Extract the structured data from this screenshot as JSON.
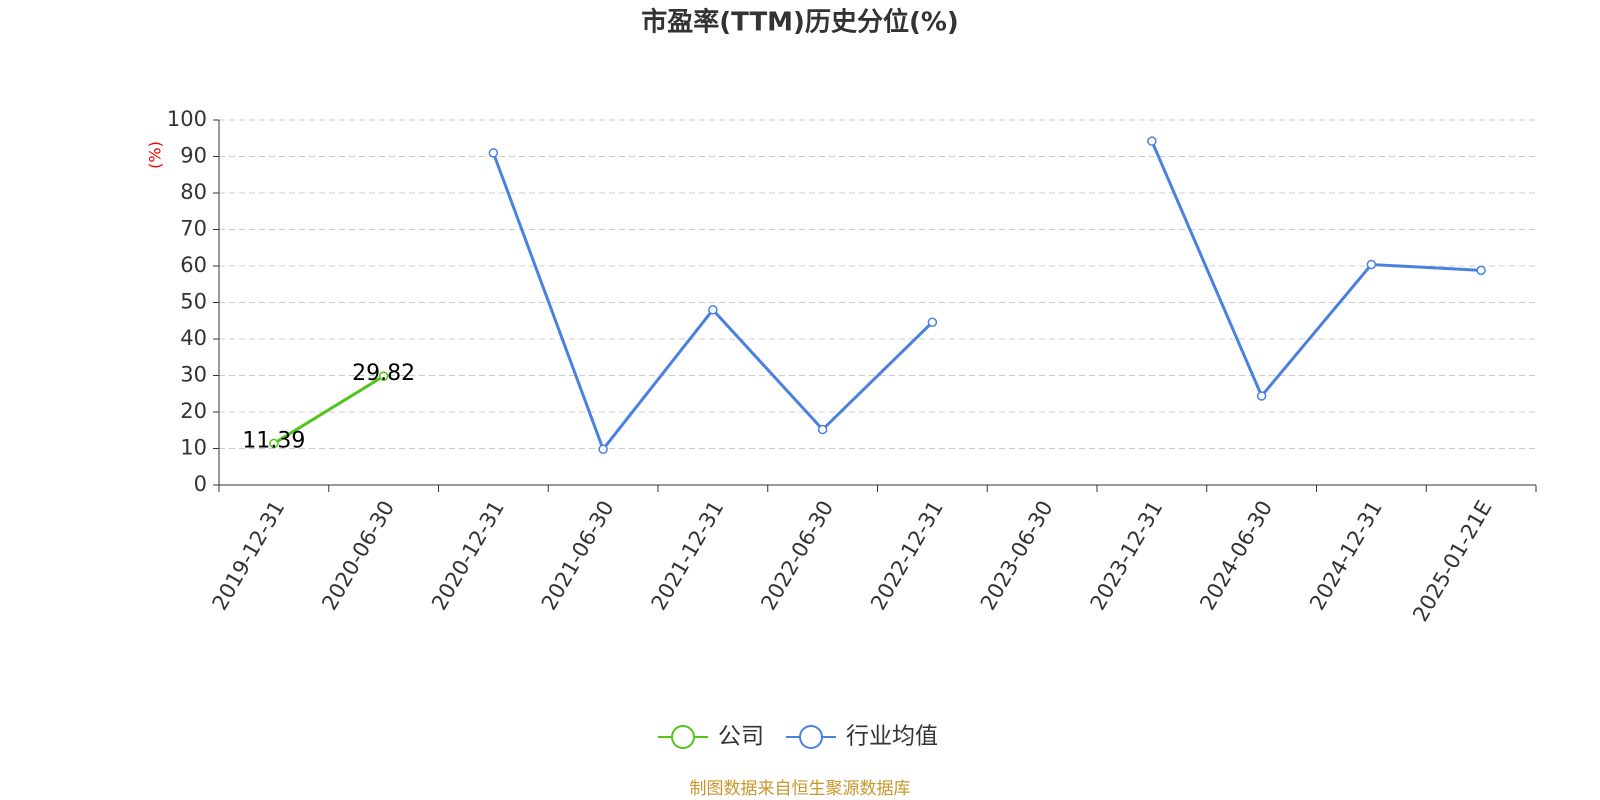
{
  "chart_data": {
    "type": "line",
    "title": "市盈率(TTM)历史分位(%)",
    "y_label": "(%)",
    "categories": [
      "2019-12-31",
      "2020-06-30",
      "2020-12-31",
      "2021-06-30",
      "2021-12-31",
      "2022-06-30",
      "2022-12-31",
      "2023-06-30",
      "2023-12-31",
      "2024-06-30",
      "2024-12-31",
      "2025-01-21E"
    ],
    "series": [
      {
        "name": "公司",
        "color": "#52c41a",
        "show_labels": true,
        "values": [
          11.39,
          29.82,
          null,
          null,
          null,
          null,
          null,
          null,
          null,
          null,
          null,
          null
        ]
      },
      {
        "name": "行业均值",
        "color": "#4a80e0",
        "show_labels": false,
        "values": [
          null,
          null,
          91,
          9.8,
          48,
          15.2,
          44.6,
          null,
          94.2,
          24.4,
          60.4,
          58.8
        ]
      }
    ],
    "ylim": [
      0,
      100
    ],
    "yticks": [
      0,
      10,
      20,
      30,
      40,
      50,
      60,
      70,
      80,
      90,
      100
    ],
    "grid": true,
    "legend": "bottom",
    "source": "制图数据来自恒生聚源数据库"
  }
}
